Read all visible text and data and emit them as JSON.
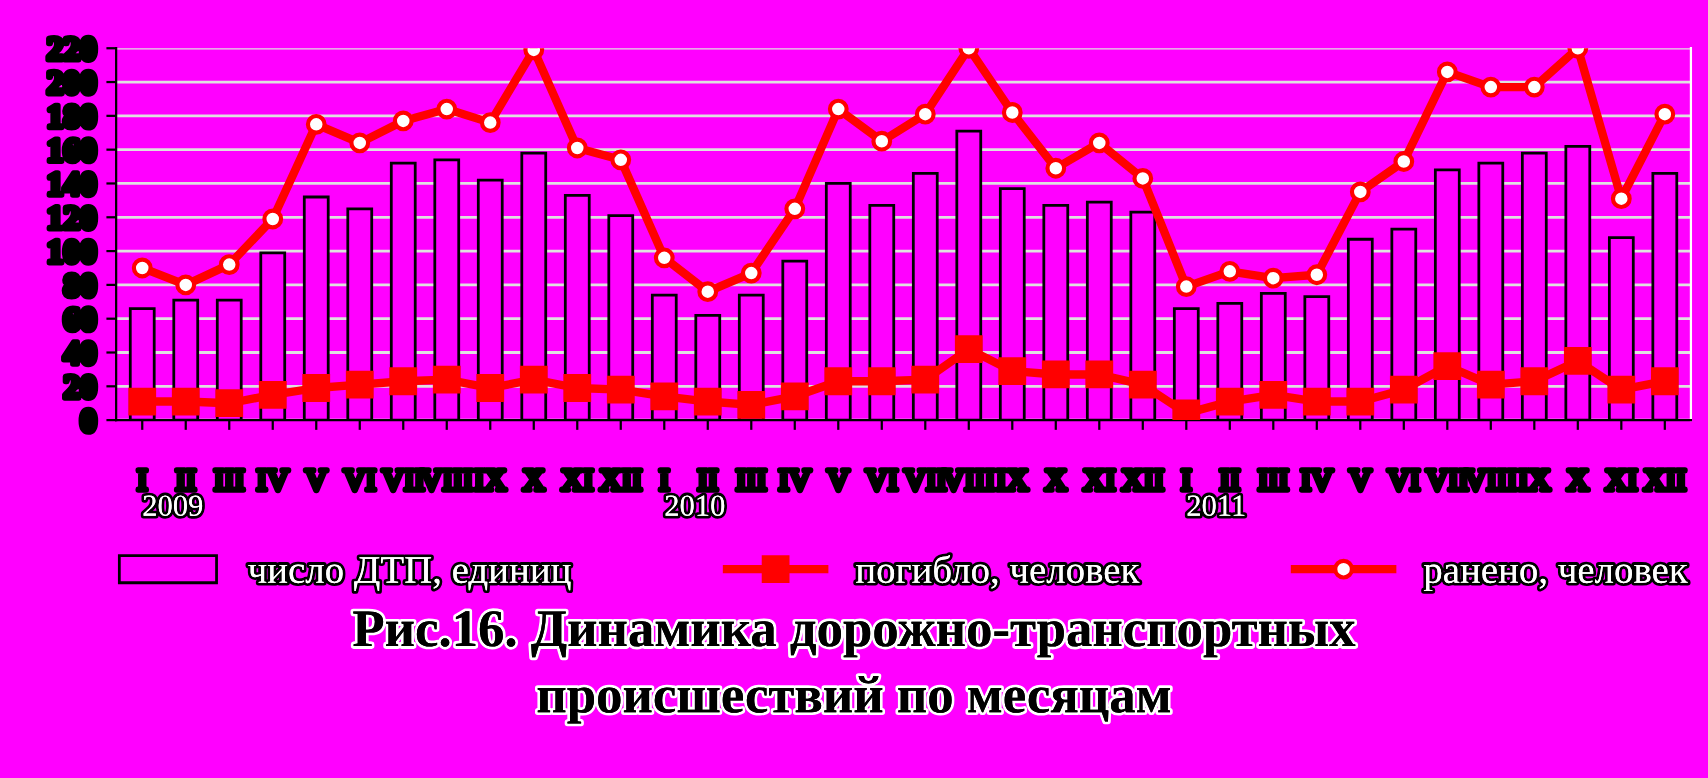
{
  "chart_data": {
    "type": "bar",
    "title": "Рис.16. Динамика дорожно-транспортных\nпроисшествий по месяцам",
    "categories": [
      "I",
      "II",
      "III",
      "IV",
      "V",
      "VI",
      "VII",
      "VIII",
      "IX",
      "X",
      "XI",
      "XII",
      "I",
      "II",
      "III",
      "IV",
      "V",
      "VI",
      "VII",
      "VIII",
      "IX",
      "X",
      "XI",
      "XII",
      "I",
      "II",
      "III",
      "IV",
      "V",
      "VI",
      "VII",
      "VIII",
      "IX",
      "X",
      "XI",
      "XII"
    ],
    "series": [
      {
        "name": "число ДТП, единиц",
        "color": "#ff00ff",
        "values": [
          66,
          71,
          71,
          99,
          132,
          125,
          152,
          154,
          142,
          158,
          133,
          121,
          74,
          62,
          74,
          94,
          140,
          127,
          146,
          171,
          137,
          127,
          129,
          123,
          66,
          69,
          75,
          73,
          107,
          113,
          148,
          152,
          158,
          162,
          108,
          146
        ]
      },
      {
        "name": "погибло, человек",
        "type": "line",
        "marker": "square",
        "color": "#ff0000",
        "values": [
          11,
          11,
          10,
          15,
          19,
          21,
          23,
          24,
          19,
          24,
          19,
          18,
          14,
          11,
          9,
          14,
          23,
          23,
          24,
          42,
          29,
          27,
          27,
          21,
          4,
          11,
          15,
          11,
          11,
          18,
          32,
          21,
          23,
          35,
          18,
          23
        ]
      },
      {
        "name": "ранено, человек",
        "type": "line",
        "marker": "circle",
        "color": "#ff0000",
        "values": [
          90,
          80,
          92,
          119,
          175,
          164,
          177,
          184,
          176,
          219,
          161,
          154,
          96,
          76,
          87,
          125,
          184,
          165,
          181,
          220,
          182,
          149,
          164,
          143,
          79,
          88,
          84,
          86,
          135,
          153,
          206,
          197,
          197,
          220,
          131,
          181
        ]
      }
    ],
    "annotations": [
      "2009",
      "2010",
      "2011"
    ],
    "ylim": [
      0,
      220
    ],
    "yticks": [
      0,
      20,
      40,
      60,
      80,
      100,
      120,
      140,
      160,
      180,
      200,
      220
    ],
    "grid": "y",
    "legend": "bottom"
  }
}
